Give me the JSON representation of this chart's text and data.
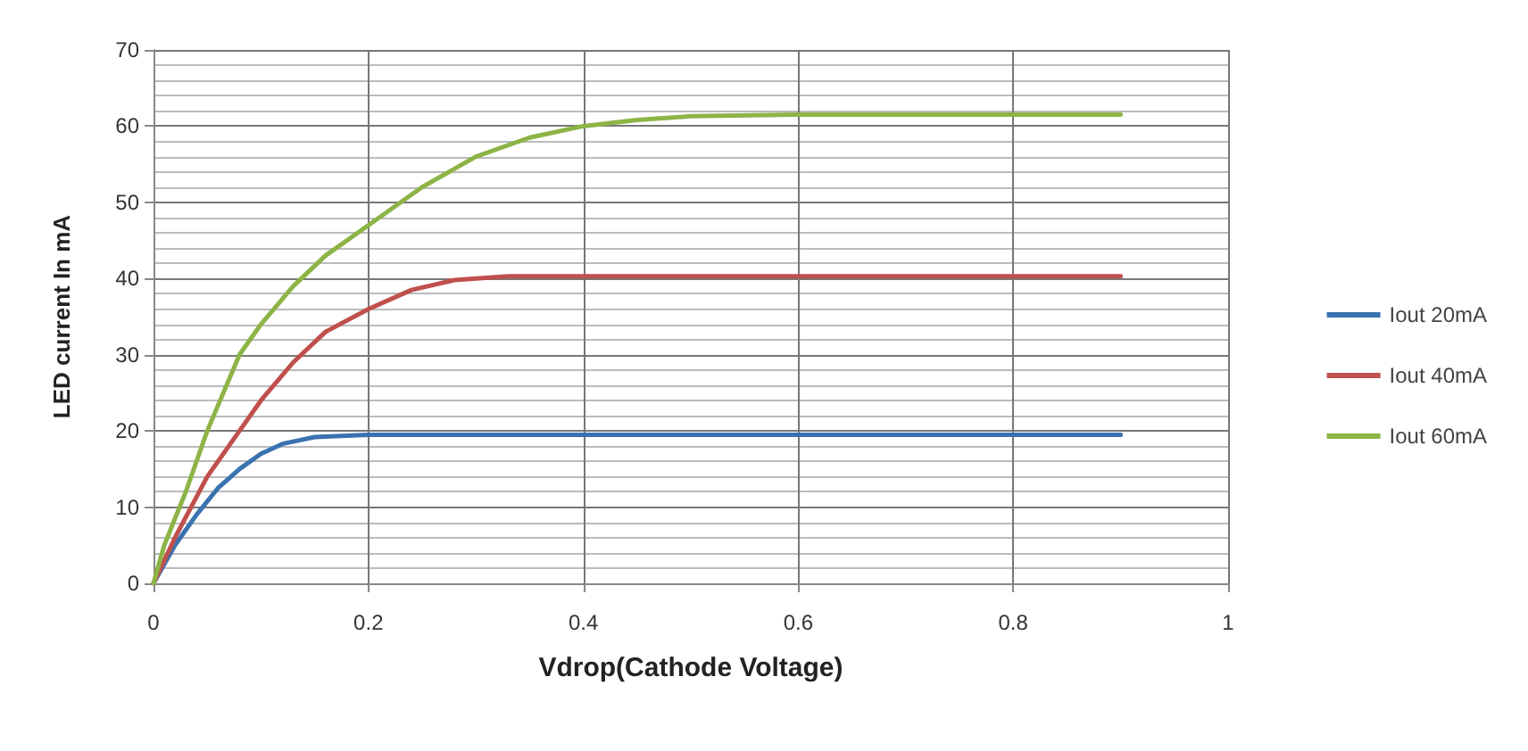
{
  "chart_data": {
    "type": "line",
    "xlabel": "Vdrop(Cathode Voltage)",
    "ylabel": "LED current In mA",
    "xlim": [
      0,
      1
    ],
    "xticks": [
      0,
      0.2,
      0.4,
      0.6,
      0.8,
      1
    ],
    "ylim": [
      0,
      70
    ],
    "yticks": [
      0,
      10,
      20,
      30,
      40,
      50,
      60,
      70
    ],
    "grid": true,
    "legend": "right",
    "marker": "none",
    "line_style": "solid",
    "series": [
      {
        "name": "Iout 20mA",
        "color": "#3a72b0",
        "x": [
          0,
          0.02,
          0.04,
          0.06,
          0.08,
          0.1,
          0.12,
          0.15,
          0.2,
          0.9
        ],
        "values": [
          0,
          5,
          9,
          12.5,
          15,
          17,
          18.3,
          19.2,
          19.5,
          19.5
        ]
      },
      {
        "name": "Iout 40mA",
        "color": "#c0504d",
        "x": [
          0,
          0.02,
          0.05,
          0.08,
          0.1,
          0.13,
          0.16,
          0.2,
          0.24,
          0.28,
          0.33,
          0.9
        ],
        "values": [
          0,
          6,
          14,
          20,
          24,
          29,
          33,
          36,
          38.5,
          39.8,
          40.3,
          40.3
        ]
      },
      {
        "name": "Iout 60mA",
        "color": "#8db446",
        "x": [
          0,
          0.01,
          0.03,
          0.05,
          0.08,
          0.1,
          0.13,
          0.16,
          0.2,
          0.25,
          0.3,
          0.35,
          0.4,
          0.45,
          0.5,
          0.6,
          0.9
        ],
        "values": [
          0,
          5,
          12,
          20,
          30,
          34,
          39,
          43,
          47,
          52,
          56,
          58.5,
          60,
          60.8,
          61.3,
          61.5,
          61.5
        ]
      }
    ]
  }
}
